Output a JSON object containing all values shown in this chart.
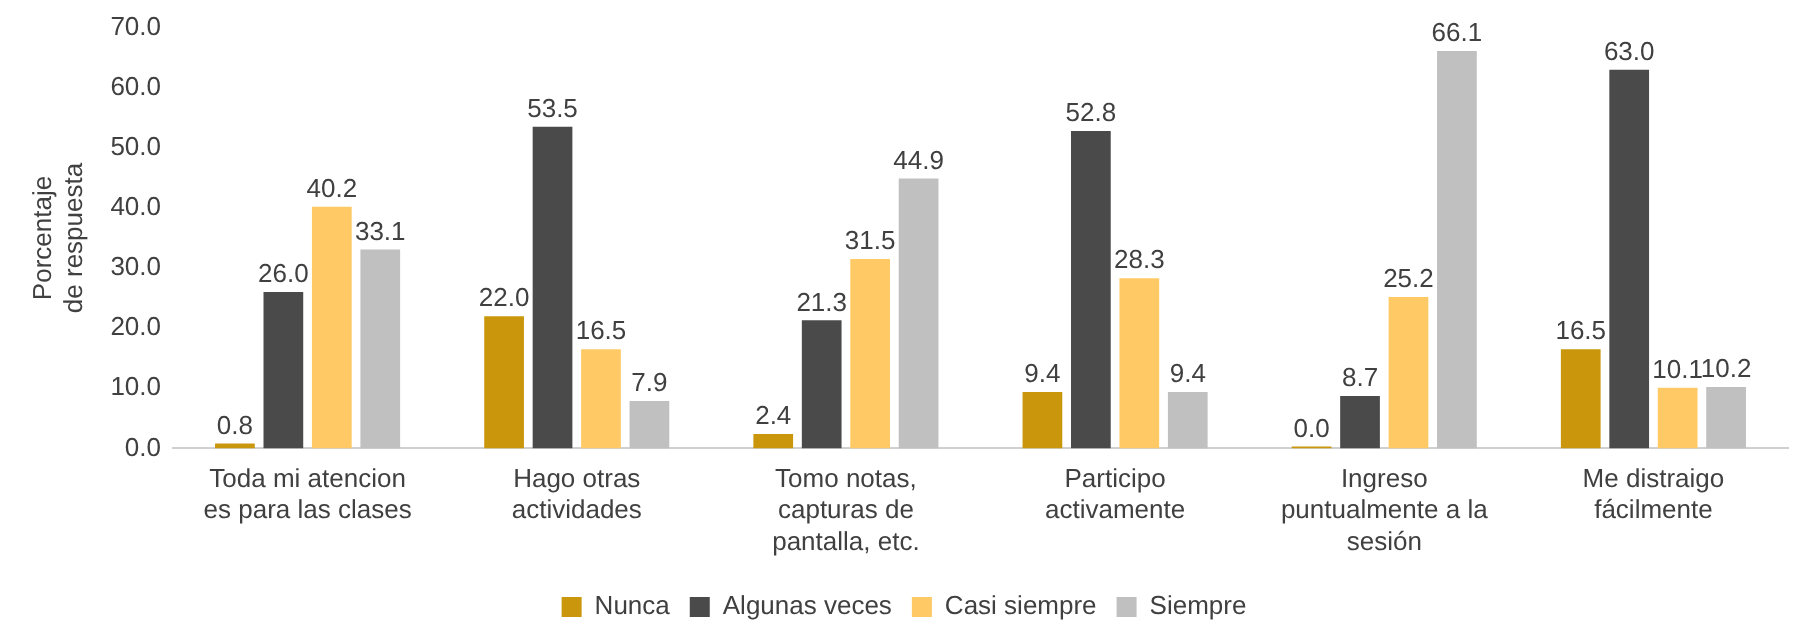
{
  "chart_data": {
    "type": "bar",
    "ylabel": "Porcentaje de respuesta",
    "categories": [
      "Toda mi atencion es para las clases",
      "Hago otras actividades",
      "Tomo notas, capturas de pantalla, etc.",
      "Participo activamente",
      "Ingreso puntualmente a la sesión",
      "Me distraigo fácilmente"
    ],
    "series": [
      {
        "name": "Nunca",
        "color": "#c9960c",
        "values": [
          0.8,
          22.0,
          2.4,
          9.4,
          0.0,
          16.5
        ],
        "value_labels": [
          "0.8",
          "22.0",
          "2.4",
          "9.4",
          "0.0",
          "16.5"
        ]
      },
      {
        "name": "Algunas veces",
        "color": "#4a4a4a",
        "values": [
          26.0,
          53.5,
          21.3,
          52.8,
          8.7,
          63.0
        ],
        "value_labels": [
          "26.0",
          "53.5",
          "21.3",
          "52.8",
          "8.7",
          "63.0"
        ]
      },
      {
        "name": "Casi siempre",
        "color": "#ffc966",
        "values": [
          40.2,
          16.5,
          31.5,
          28.3,
          25.2,
          10.1
        ],
        "value_labels": [
          "40.2",
          "16.5",
          "31.5",
          "28.3",
          "25.2",
          "10.1"
        ]
      },
      {
        "name": "Siempre",
        "color": "#c0c0c0",
        "values": [
          33.1,
          7.9,
          44.9,
          9.4,
          66.1,
          10.2
        ],
        "value_labels": [
          "33.1",
          "7.9",
          "44.9",
          "9.4",
          "66.1",
          "10.2"
        ]
      }
    ],
    "ylim": [
      0,
      70
    ],
    "yticks": [
      {
        "value": 0,
        "label": "0.0"
      },
      {
        "value": 10,
        "label": "10.0"
      },
      {
        "value": 20,
        "label": "20.0"
      },
      {
        "value": 30,
        "label": "30.0"
      },
      {
        "value": 40,
        "label": "40.0"
      },
      {
        "value": 50,
        "label": "50.0"
      },
      {
        "value": 60,
        "label": "60.0"
      },
      {
        "value": 70,
        "label": "70.0"
      }
    ],
    "grid": false,
    "legend": "bottom"
  }
}
